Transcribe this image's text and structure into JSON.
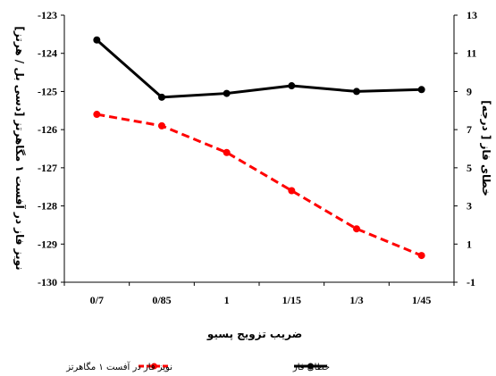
{
  "chart_data": {
    "type": "line",
    "categories": [
      "0/7",
      "0/85",
      "1",
      "1/15",
      "1/3",
      "1/45"
    ],
    "xlabel": "ضریب تزویج پسیو",
    "ylabel_left": "نویز فاز در آفست ۱ مگاهرتز [دسی بل / هرتز]",
    "ylabel_right": "خطای فاز [ درجه]",
    "ylim_left": [
      -130,
      -123
    ],
    "yticks_left": [
      "-123",
      "-124",
      "-125",
      "-126",
      "-127",
      "-128",
      "-129",
      "-130"
    ],
    "ylim_right": [
      -1,
      13
    ],
    "yticks_right": [
      "13",
      "11",
      "9",
      "7",
      "5",
      "3",
      "1",
      "-1"
    ],
    "grid": false,
    "legend_position": "bottom",
    "series": [
      {
        "name": "نویز فاز در آفست ۱ مگاهرتز",
        "axis": "left",
        "color": "#ff0000",
        "style": "dashed",
        "values": [
          -125.6,
          -125.9,
          -126.6,
          -127.6,
          -128.6,
          -129.3
        ]
      },
      {
        "name": "خطای فاز",
        "axis": "right",
        "color": "#000000",
        "style": "solid",
        "values": [
          11.7,
          8.7,
          8.9,
          9.3,
          9.0,
          9.1
        ]
      }
    ]
  }
}
